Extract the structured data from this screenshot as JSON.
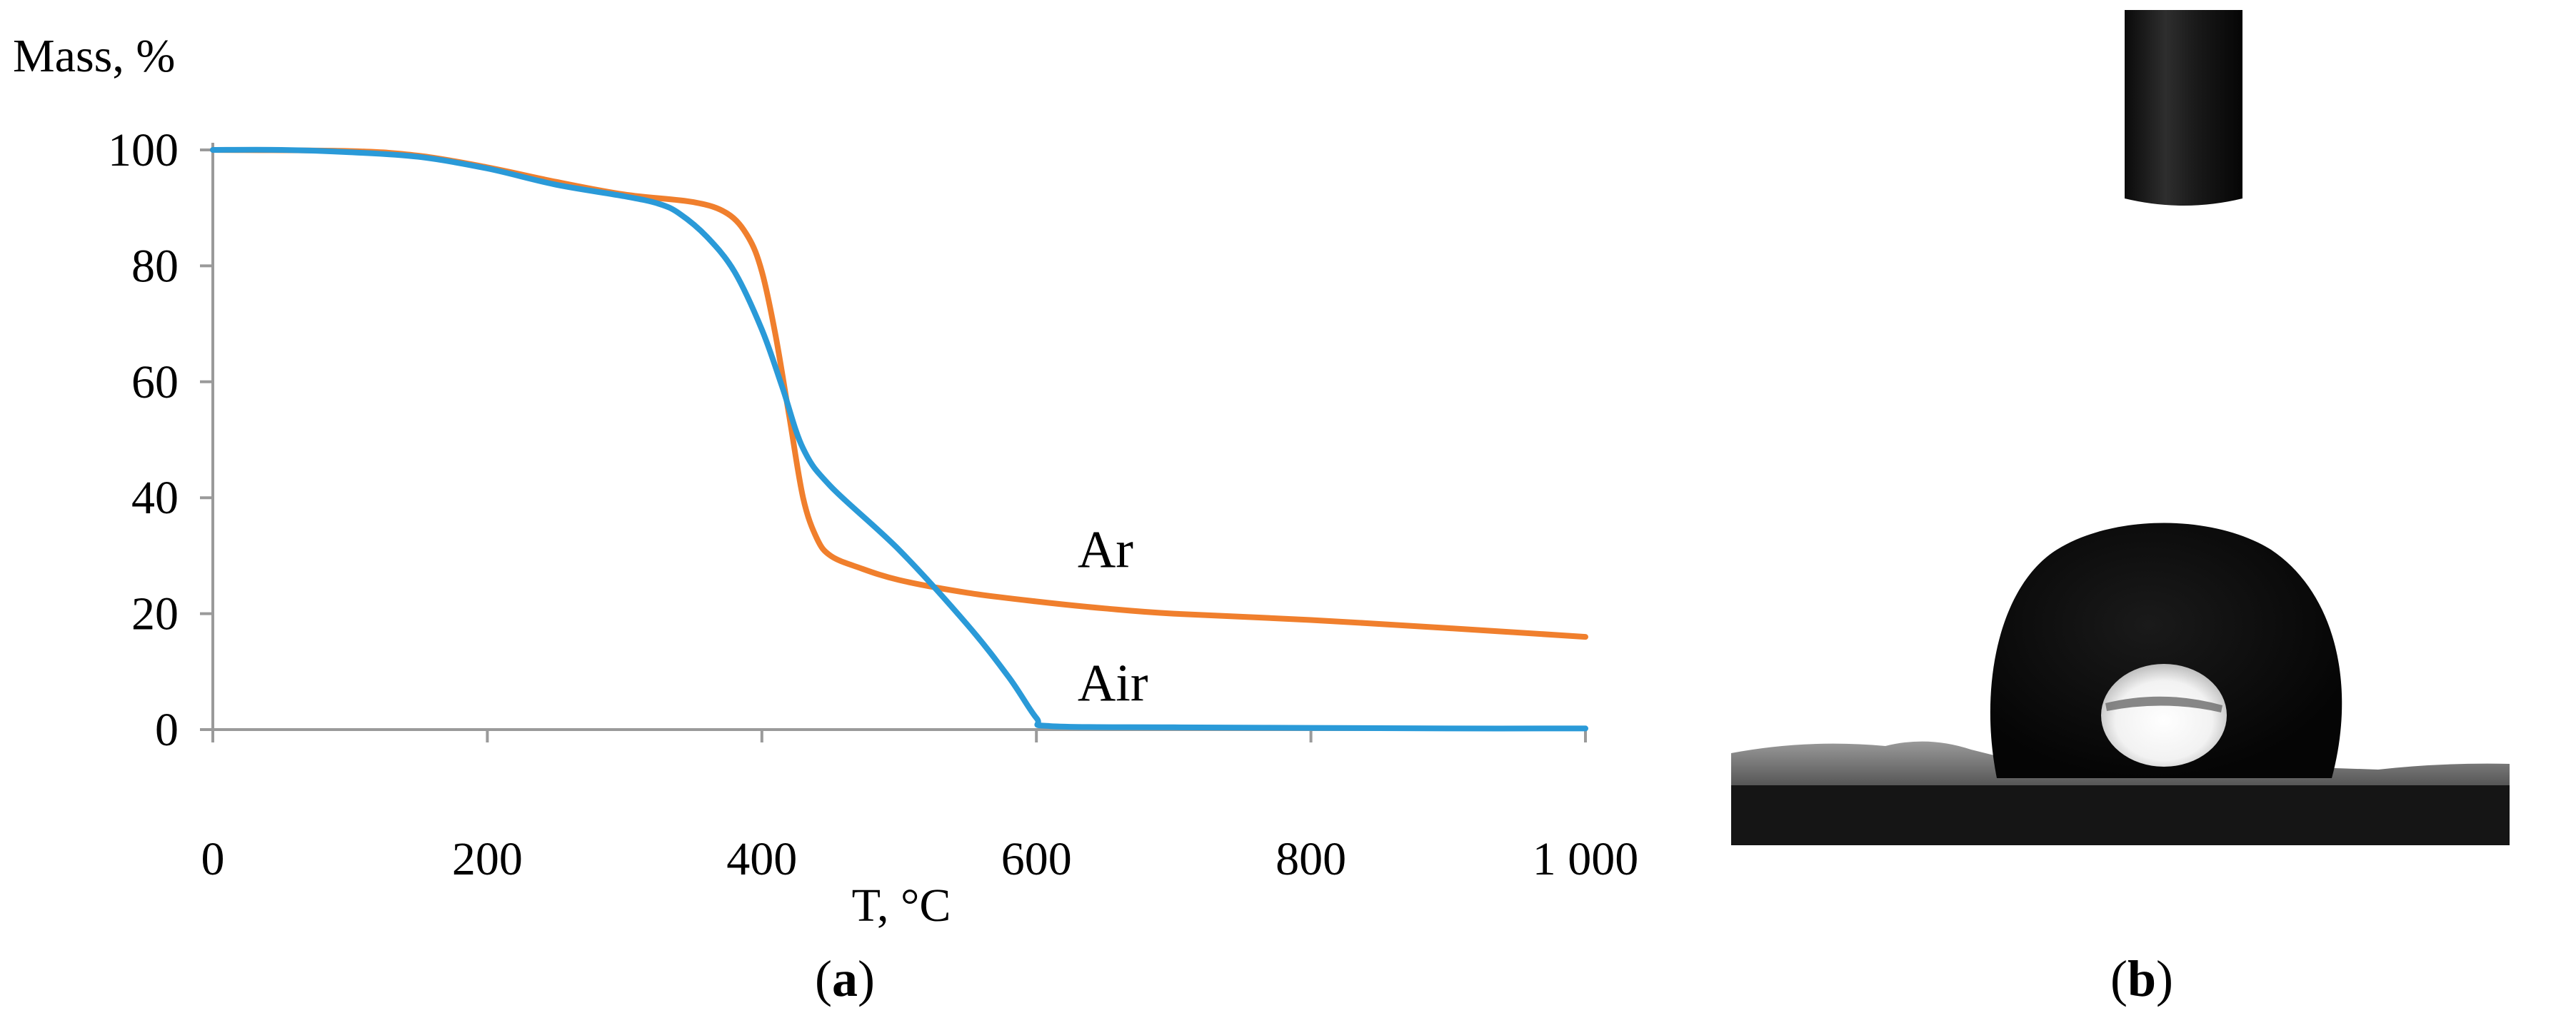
{
  "chart_data": {
    "type": "line",
    "ylabel": "Mass, %",
    "xlabel": "T, °C",
    "xlim": [
      0,
      1000
    ],
    "ylim": [
      0,
      100
    ],
    "x_ticks": [
      0,
      200,
      400,
      600,
      800,
      1000
    ],
    "x_tick_labels": [
      "0",
      "200",
      "400",
      "600",
      "800",
      "1 000"
    ],
    "y_ticks": [
      0,
      20,
      40,
      60,
      80,
      100
    ],
    "y_tick_labels": [
      "0",
      "20",
      "40",
      "60",
      "80",
      "100"
    ],
    "grid": false,
    "series": [
      {
        "name": "Ar",
        "color": "#f07f2d",
        "label_at": [
          630,
          28
        ],
        "points": [
          [
            0,
            100
          ],
          [
            100,
            99.8
          ],
          [
            150,
            99
          ],
          [
            200,
            97
          ],
          [
            250,
            94.5
          ],
          [
            300,
            92.3
          ],
          [
            350,
            91
          ],
          [
            375,
            89
          ],
          [
            390,
            85
          ],
          [
            400,
            79
          ],
          [
            410,
            68
          ],
          [
            420,
            54
          ],
          [
            430,
            40
          ],
          [
            440,
            33
          ],
          [
            450,
            30
          ],
          [
            470,
            28
          ],
          [
            500,
            25.8
          ],
          [
            550,
            23.6
          ],
          [
            600,
            22.1
          ],
          [
            650,
            20.9
          ],
          [
            700,
            20
          ],
          [
            800,
            18.9
          ],
          [
            900,
            17.5
          ],
          [
            1000,
            16
          ]
        ]
      },
      {
        "name": "Air",
        "color": "#2a9ad8",
        "label_at": [
          630,
          5
        ],
        "points": [
          [
            0,
            100
          ],
          [
            50,
            100
          ],
          [
            100,
            99.6
          ],
          [
            150,
            98.8
          ],
          [
            200,
            96.8
          ],
          [
            250,
            94
          ],
          [
            300,
            92
          ],
          [
            325,
            90.7
          ],
          [
            340,
            89
          ],
          [
            360,
            85
          ],
          [
            380,
            79
          ],
          [
            400,
            69
          ],
          [
            415,
            59
          ],
          [
            430,
            48.5
          ],
          [
            450,
            42
          ],
          [
            500,
            31
          ],
          [
            550,
            18
          ],
          [
            580,
            9
          ],
          [
            600,
            2
          ],
          [
            610,
            0.6
          ],
          [
            700,
            0.4
          ],
          [
            800,
            0.3
          ],
          [
            900,
            0.2
          ],
          [
            1000,
            0.2
          ]
        ]
      }
    ]
  },
  "panels": {
    "a_letter": "a",
    "b_letter": "b"
  }
}
